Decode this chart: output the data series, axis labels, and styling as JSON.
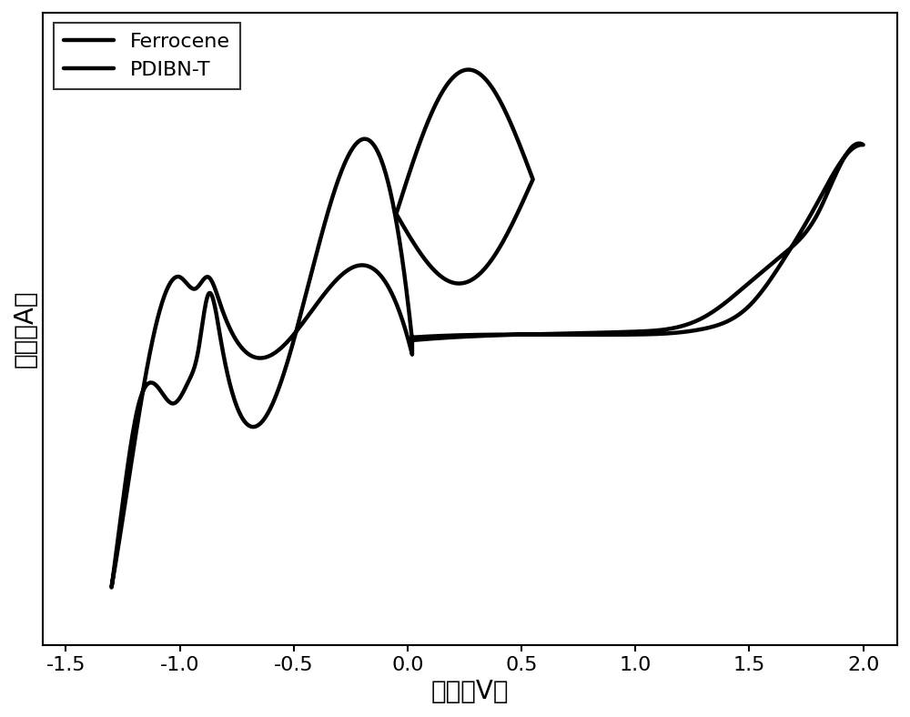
{
  "xlabel": "电压（V）",
  "ylabel": "电流（A）",
  "xlim": [
    -1.6,
    2.15
  ],
  "ylim": [
    -0.55,
    0.55
  ],
  "legend_labels": [
    "Ferrocene",
    "PDIBN-T"
  ],
  "line_color": "#000000",
  "background_color": "#ffffff",
  "axis_label_fontsize": 20,
  "tick_fontsize": 16,
  "legend_fontsize": 16,
  "linewidth_ferrocene": 3.2,
  "linewidth_pdibn": 3.2,
  "xticks": [
    -1.5,
    -1.0,
    -0.5,
    0.0,
    0.5,
    1.0,
    1.5,
    2.0
  ]
}
